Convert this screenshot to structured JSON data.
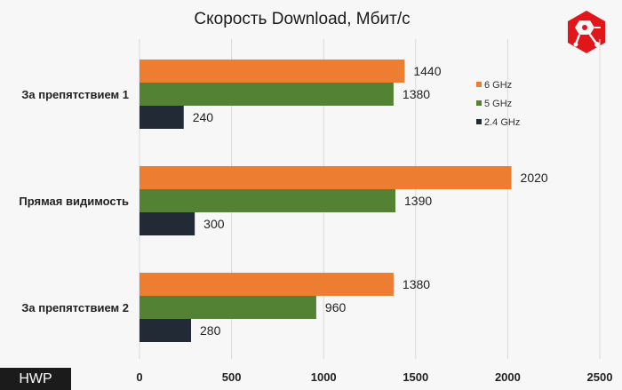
{
  "brand": {
    "label": "HWP"
  },
  "logo": {
    "icon": "circuit-hexagon-logo-icon",
    "color": "#e0161b"
  },
  "chart_data": {
    "type": "bar",
    "orientation": "horizontal",
    "title": "Скорость Download, Мбит/с",
    "categories": [
      "За препятствием 1",
      "Прямая видимость",
      "За препятствием 2"
    ],
    "series": [
      {
        "name": "6 GHz",
        "color": "#ed7d31",
        "values": [
          1440,
          2020,
          1380
        ]
      },
      {
        "name": "5 GHz",
        "color": "#548235",
        "values": [
          1380,
          1390,
          960
        ]
      },
      {
        "name": "2.4 GHz",
        "color": "#222a35",
        "values": [
          240,
          300,
          280
        ]
      }
    ],
    "xlim": [
      0,
      2500
    ],
    "xticks": [
      "0",
      "500",
      "1000",
      "1500",
      "2000",
      "2500"
    ],
    "grid": true,
    "legend_position": "right"
  }
}
